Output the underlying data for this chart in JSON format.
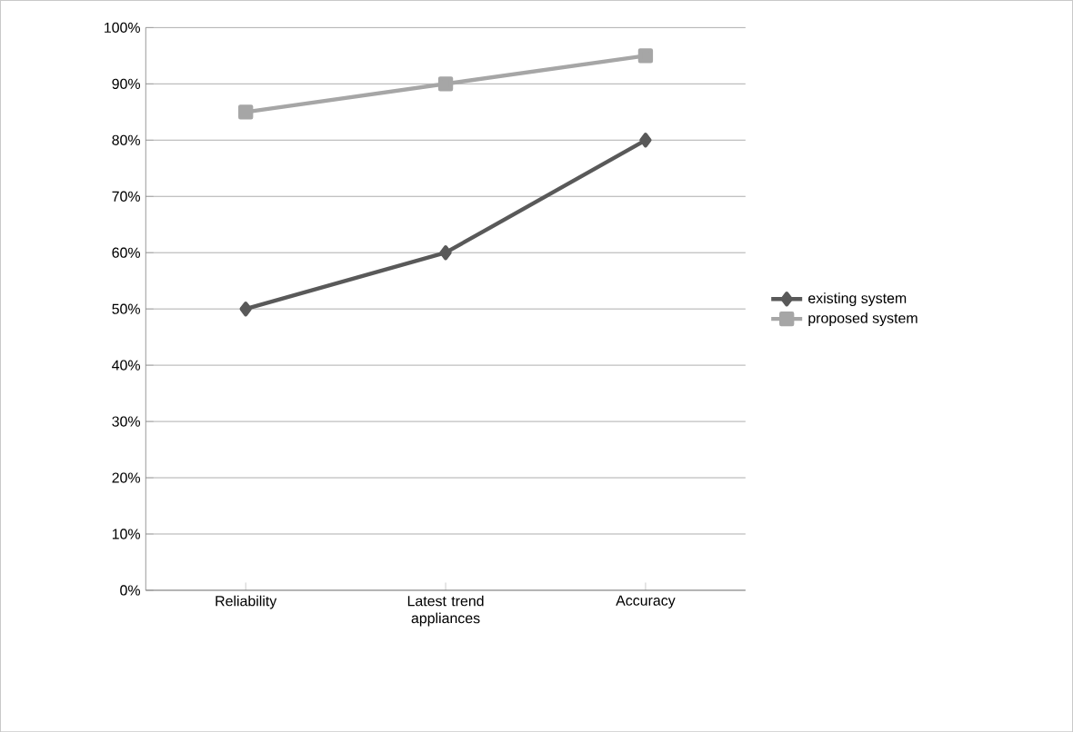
{
  "chart_data": {
    "type": "line",
    "categories": [
      "Reliability",
      "Latest trend appliances",
      "Accuracy"
    ],
    "series": [
      {
        "name": "existing system",
        "color": "#595959",
        "values": [
          50,
          60,
          80
        ],
        "marker": "diamond"
      },
      {
        "name": "proposed system",
        "color": "#a6a6a6",
        "values": [
          85,
          90,
          95
        ],
        "marker": "square"
      }
    ],
    "ylim": [
      0,
      100
    ],
    "yticks": [
      {
        "value": 0,
        "label": "0%"
      },
      {
        "value": 10,
        "label": "10%"
      },
      {
        "value": 20,
        "label": "20%"
      },
      {
        "value": 30,
        "label": "30%"
      },
      {
        "value": 40,
        "label": "40%"
      },
      {
        "value": 50,
        "label": "50%"
      },
      {
        "value": 60,
        "label": "60%"
      },
      {
        "value": 70,
        "label": "70%"
      },
      {
        "value": 80,
        "label": "80%"
      },
      {
        "value": 90,
        "label": "90%"
      },
      {
        "value": 100,
        "label": "100%"
      }
    ],
    "grid": "y",
    "legend": "right",
    "line_style": "solid"
  }
}
